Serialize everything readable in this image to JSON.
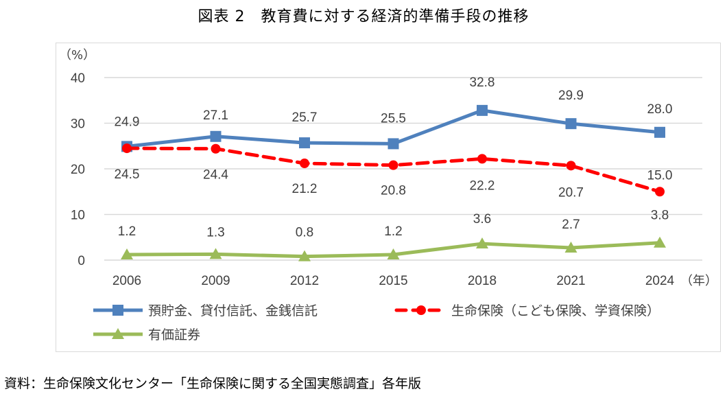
{
  "chart_data": {
    "type": "line",
    "title": "図表 2　教育費に対する経済的準備手段の推移",
    "ylabel": "（%）",
    "xlabel": "（年）",
    "categories": [
      "2006",
      "2009",
      "2012",
      "2015",
      "2018",
      "2021",
      "2024"
    ],
    "ylim": [
      0,
      40
    ],
    "yticks": [
      0,
      10,
      20,
      30,
      40
    ],
    "grid": true,
    "legend_position": "bottom",
    "series": [
      {
        "name": "預貯金、貸付信託、金銭信託",
        "color": "#4f81bd",
        "marker": "square",
        "dash": "solid",
        "values": [
          24.9,
          27.1,
          25.7,
          25.5,
          32.8,
          29.9,
          28.0
        ],
        "labels": [
          "24.9",
          "27.1",
          "25.7",
          "25.5",
          "32.8",
          "29.9",
          "28.0"
        ],
        "label_pos": "above"
      },
      {
        "name": "生命保険（こども保険、学資保険）",
        "color": "#ff0000",
        "marker": "circle",
        "dash": "dashed",
        "values": [
          24.5,
          24.4,
          21.2,
          20.8,
          22.2,
          20.7,
          15.0
        ],
        "labels": [
          "24.5",
          "24.4",
          "21.2",
          "20.8",
          "22.2",
          "20.7",
          "15.0"
        ],
        "label_pos": "below"
      },
      {
        "name": "有価証券",
        "color": "#9bbb59",
        "marker": "triangle",
        "dash": "solid",
        "values": [
          1.2,
          1.3,
          0.8,
          1.2,
          3.6,
          2.7,
          3.8
        ],
        "labels": [
          "1.2",
          "1.3",
          "0.8",
          "1.2",
          "3.6",
          "2.7",
          "3.8"
        ],
        "label_pos": "above"
      }
    ]
  },
  "source": "資料：生命保険文化センター「生命保険に関する全国実態調査」各年版"
}
